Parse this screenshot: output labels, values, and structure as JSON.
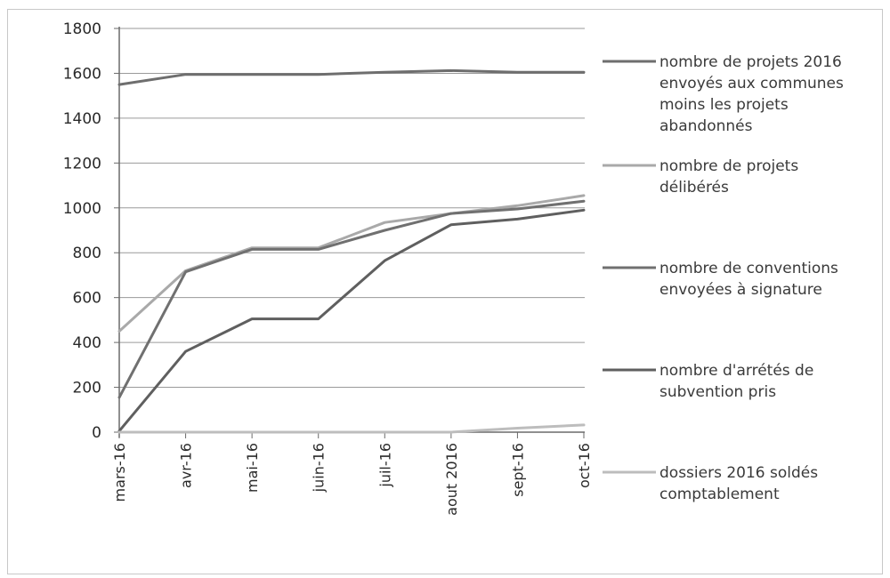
{
  "chart_data": {
    "type": "line",
    "title": "",
    "xlabel": "",
    "ylabel": "",
    "categories": [
      "mars-16",
      "avr-16",
      "mai-16",
      "juin-16",
      "juil-16",
      "aout 2016",
      "sept-16",
      "oct-16"
    ],
    "ylim": [
      0,
      1800
    ],
    "yticks": [
      0,
      200,
      400,
      600,
      800,
      1000,
      1200,
      1400,
      1600,
      1800
    ],
    "grid": true,
    "legend_position": "right",
    "series": [
      {
        "name": "nombre de projets 2016 envoyés aux communes moins les projets abandonnés",
        "legend_lines": [
          "nombre de projets 2016",
          "envoyés aux communes",
          "moins les projets",
          "abandonnés"
        ],
        "color": "#6e6e6e",
        "values": [
          1550,
          1595,
          1595,
          1595,
          1605,
          1612,
          1605,
          1605
        ]
      },
      {
        "name": "nombre de projets délibérés",
        "legend_lines": [
          "nombre de projets",
          "délibérés"
        ],
        "color": "#a9a9a9",
        "values": [
          450,
          720,
          822,
          822,
          935,
          975,
          1010,
          1055
        ]
      },
      {
        "name": "nombre de conventions envoyées à signature",
        "legend_lines": [
          "nombre de conventions",
          "envoyées à signature"
        ],
        "color": "#707070",
        "values": [
          155,
          715,
          815,
          815,
          900,
          975,
          995,
          1030
        ]
      },
      {
        "name": "nombre d'arrétés de subvention pris",
        "legend_lines": [
          "nombre d'arrétés de",
          "subvention pris"
        ],
        "color": "#5f5f5f",
        "values": [
          5,
          360,
          505,
          505,
          765,
          925,
          950,
          990
        ]
      },
      {
        "name": "dossiers 2016 soldés comptablement",
        "legend_lines": [
          "dossiers 2016 soldés",
          "comptablement"
        ],
        "color": "#bdbdbd",
        "values": [
          0,
          0,
          0,
          0,
          0,
          0,
          18,
          32
        ]
      }
    ]
  }
}
